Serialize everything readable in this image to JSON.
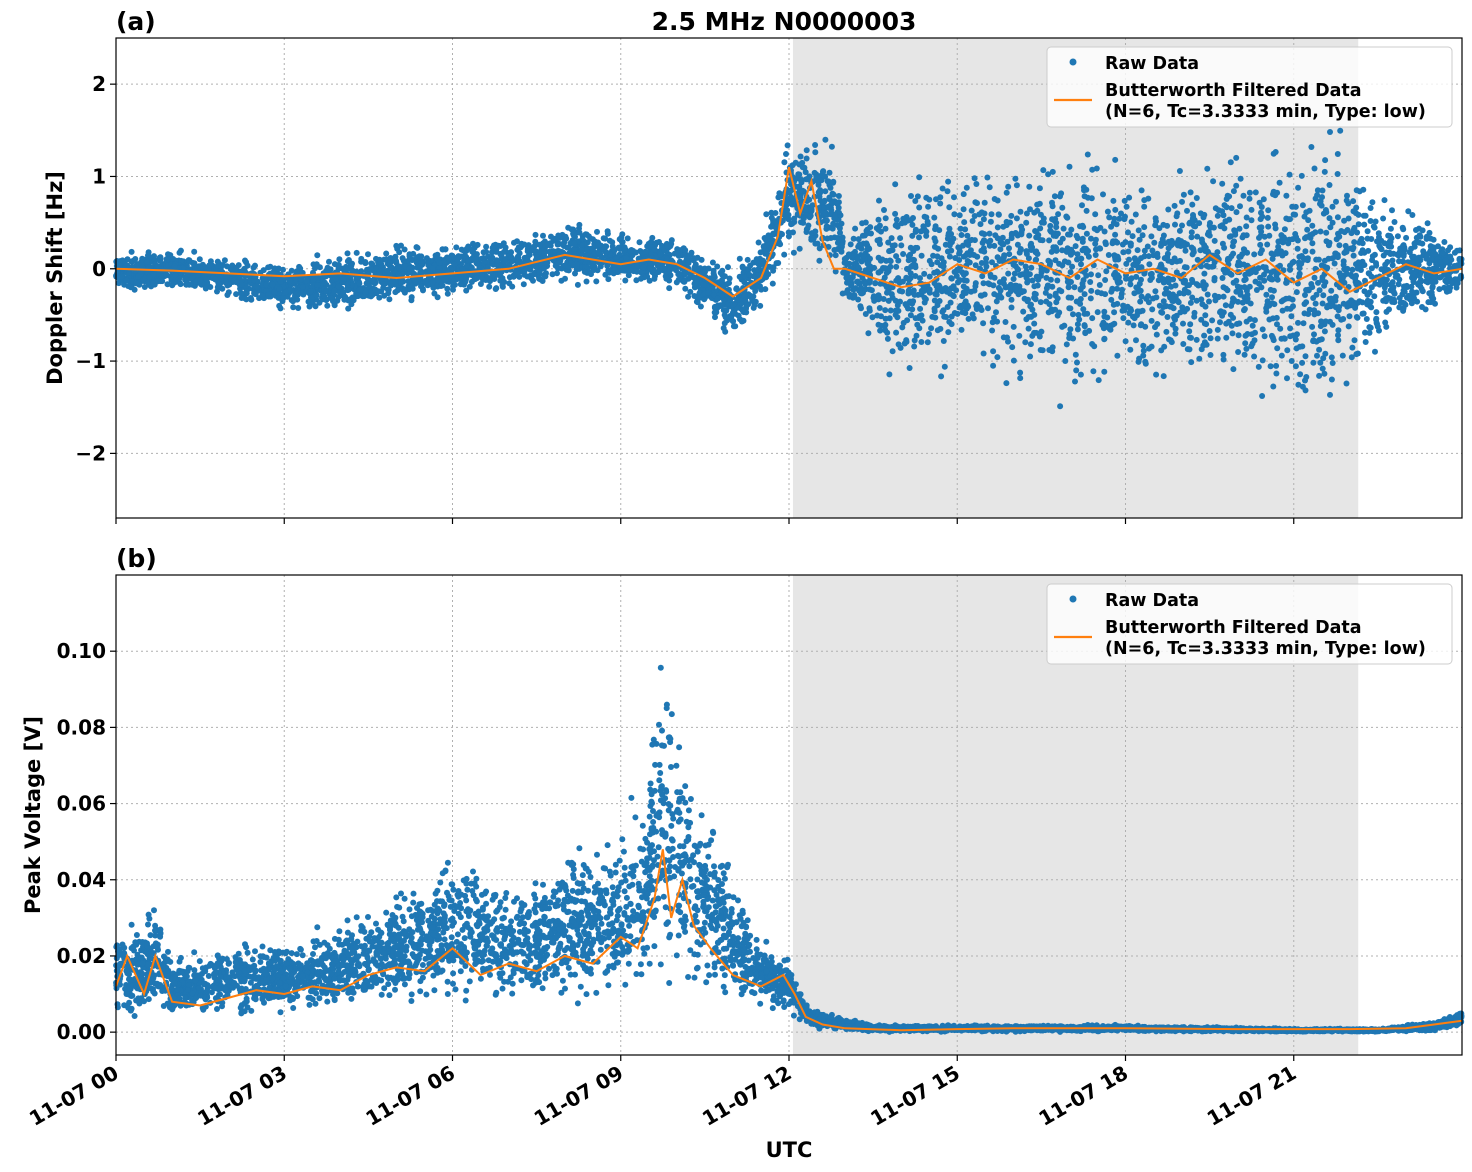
{
  "title": "2.5 MHz N0000003",
  "xlabel": "UTC",
  "x_ticks": [
    "11-07 00",
    "11-07 03",
    "11-07 06",
    "11-07 09",
    "11-07 12",
    "11-07 15",
    "11-07 18",
    "11-07 21"
  ],
  "colors": {
    "raw": "#1f77b4",
    "filtered": "#ff7f0e",
    "shade": "#e6e6e6"
  },
  "chart_data": [
    {
      "type": "scatter",
      "panel_label": "(a)",
      "ylabel": "Doppler Shift [Hz]",
      "x_units": "hours UTC on 11-07",
      "xlim": [
        0,
        24
      ],
      "ylim": [
        -2.7,
        2.5
      ],
      "y_ticks": [
        "2",
        "1",
        "0",
        "−1",
        "−2"
      ],
      "y_tick_values": [
        2,
        1,
        0,
        -1,
        -2
      ],
      "grid": true,
      "legend_position": "top-right",
      "legend": [
        "Raw Data",
        "Butterworth Filtered Data",
        "(N=6, Tc=3.3333 min, Type: low)"
      ],
      "shaded_interval": [
        12.07,
        22.15
      ],
      "series": [
        {
          "name": "Raw Data",
          "kind": "scatter_envelope",
          "x": [
            0,
            1,
            2,
            3,
            4,
            5,
            6,
            7,
            8,
            9,
            10,
            10.5,
            11,
            11.5,
            12,
            12.5,
            12.8,
            13,
            13.5,
            14,
            14.5,
            15,
            16,
            17,
            18,
            19,
            20,
            21,
            21.5,
            22,
            22.5,
            23,
            24
          ],
          "upper": [
            0.2,
            0.25,
            0.15,
            0.1,
            0.2,
            0.35,
            0.3,
            0.4,
            0.55,
            0.45,
            0.4,
            0.2,
            0.1,
            0.4,
            1.5,
            1.45,
            1.55,
            0.4,
            0.9,
            1.2,
            1.4,
            1.1,
            1.6,
            1.5,
            1.3,
            1.4,
            1.5,
            1.6,
            1.9,
            1.6,
            1.2,
            0.8,
            0.3
          ],
          "lower": [
            -0.25,
            -0.3,
            -0.35,
            -0.5,
            -0.55,
            -0.45,
            -0.35,
            -0.3,
            -0.2,
            -0.2,
            -0.25,
            -0.55,
            -0.85,
            -0.5,
            0.05,
            0.0,
            -0.1,
            -0.4,
            -1.0,
            -1.4,
            -1.5,
            -1.1,
            -1.5,
            -1.6,
            -1.5,
            -1.4,
            -1.5,
            -1.7,
            -2.0,
            -1.6,
            -1.2,
            -0.8,
            -0.3
          ]
        },
        {
          "name": "Butterworth Filtered Data",
          "x": [
            0,
            1,
            2,
            3,
            4,
            5,
            6,
            7,
            8,
            9,
            9.5,
            10,
            10.5,
            11,
            11.5,
            11.8,
            12,
            12.2,
            12.4,
            12.6,
            12.8,
            13,
            13.5,
            14,
            14.5,
            15,
            15.5,
            16,
            16.5,
            17,
            17.5,
            18,
            18.5,
            19,
            19.5,
            20,
            20.5,
            21,
            21.5,
            22,
            22.5,
            23,
            23.5,
            24
          ],
          "y": [
            0.0,
            -0.02,
            -0.05,
            -0.08,
            -0.05,
            -0.1,
            -0.05,
            0.0,
            0.15,
            0.05,
            0.1,
            0.05,
            -0.1,
            -0.3,
            -0.1,
            0.35,
            1.1,
            0.6,
            0.95,
            0.3,
            0.0,
            0.0,
            -0.1,
            -0.2,
            -0.15,
            0.05,
            -0.05,
            0.1,
            0.05,
            -0.1,
            0.1,
            -0.05,
            0.0,
            -0.1,
            0.15,
            -0.05,
            0.1,
            -0.15,
            0.0,
            -0.25,
            -0.1,
            0.05,
            -0.05,
            0.0
          ]
        }
      ]
    },
    {
      "type": "scatter",
      "panel_label": "(b)",
      "ylabel": "Peak Voltage [V]",
      "x_units": "hours UTC on 11-07",
      "xlim": [
        0,
        24
      ],
      "ylim": [
        -0.006,
        0.12
      ],
      "y_ticks": [
        "0.10",
        "0.08",
        "0.06",
        "0.04",
        "0.02",
        "0.00"
      ],
      "y_tick_values": [
        0.1,
        0.08,
        0.06,
        0.04,
        0.02,
        0.0
      ],
      "grid": true,
      "legend_position": "top-right",
      "legend": [
        "Raw Data",
        "Butterworth Filtered Data",
        "(N=6, Tc=3.3333 min, Type: low)"
      ],
      "shaded_interval": [
        12.07,
        22.15
      ],
      "series": [
        {
          "name": "Raw Data",
          "kind": "scatter_envelope",
          "x": [
            0,
            0.5,
            0.7,
            1,
            2,
            3,
            4,
            5,
            6,
            7,
            8,
            9,
            9.5,
            9.8,
            10,
            10.5,
            11,
            11.5,
            12,
            12.3,
            12.8,
            13.5,
            15,
            18,
            21,
            22.5,
            23.5,
            24
          ],
          "upper": [
            0.03,
            0.03,
            0.04,
            0.02,
            0.025,
            0.025,
            0.03,
            0.04,
            0.05,
            0.04,
            0.05,
            0.055,
            0.08,
            0.11,
            0.085,
            0.065,
            0.045,
            0.025,
            0.02,
            0.008,
            0.005,
            0.002,
            0.002,
            0.002,
            0.001,
            0.001,
            0.003,
            0.006
          ],
          "lower": [
            0.002,
            0.002,
            0.002,
            0.002,
            0.002,
            0.003,
            0.003,
            0.004,
            0.004,
            0.005,
            0.006,
            0.006,
            0.007,
            0.008,
            0.008,
            0.007,
            0.006,
            0.005,
            0.004,
            0.001,
            0.0,
            0.0,
            0.0,
            0.0,
            0.0,
            0.0,
            0.0,
            0.001
          ]
        },
        {
          "name": "Butterworth Filtered Data",
          "x": [
            0,
            0.2,
            0.5,
            0.7,
            1,
            1.5,
            2,
            2.5,
            3,
            3.5,
            4,
            4.5,
            5,
            5.5,
            6,
            6.5,
            7,
            7.5,
            8,
            8.5,
            9,
            9.3,
            9.6,
            9.75,
            9.9,
            10.1,
            10.3,
            10.6,
            11,
            11.5,
            11.9,
            12.1,
            12.3,
            12.6,
            13,
            14,
            15,
            16,
            18,
            20,
            22,
            23,
            23.5,
            24
          ],
          "y": [
            0.012,
            0.02,
            0.01,
            0.02,
            0.008,
            0.007,
            0.009,
            0.011,
            0.01,
            0.012,
            0.011,
            0.015,
            0.017,
            0.016,
            0.022,
            0.015,
            0.018,
            0.016,
            0.02,
            0.018,
            0.025,
            0.022,
            0.035,
            0.048,
            0.03,
            0.04,
            0.028,
            0.022,
            0.015,
            0.012,
            0.015,
            0.01,
            0.004,
            0.002,
            0.001,
            0.0005,
            0.0008,
            0.001,
            0.001,
            0.0008,
            0.0008,
            0.001,
            0.002,
            0.003
          ]
        }
      ]
    }
  ]
}
